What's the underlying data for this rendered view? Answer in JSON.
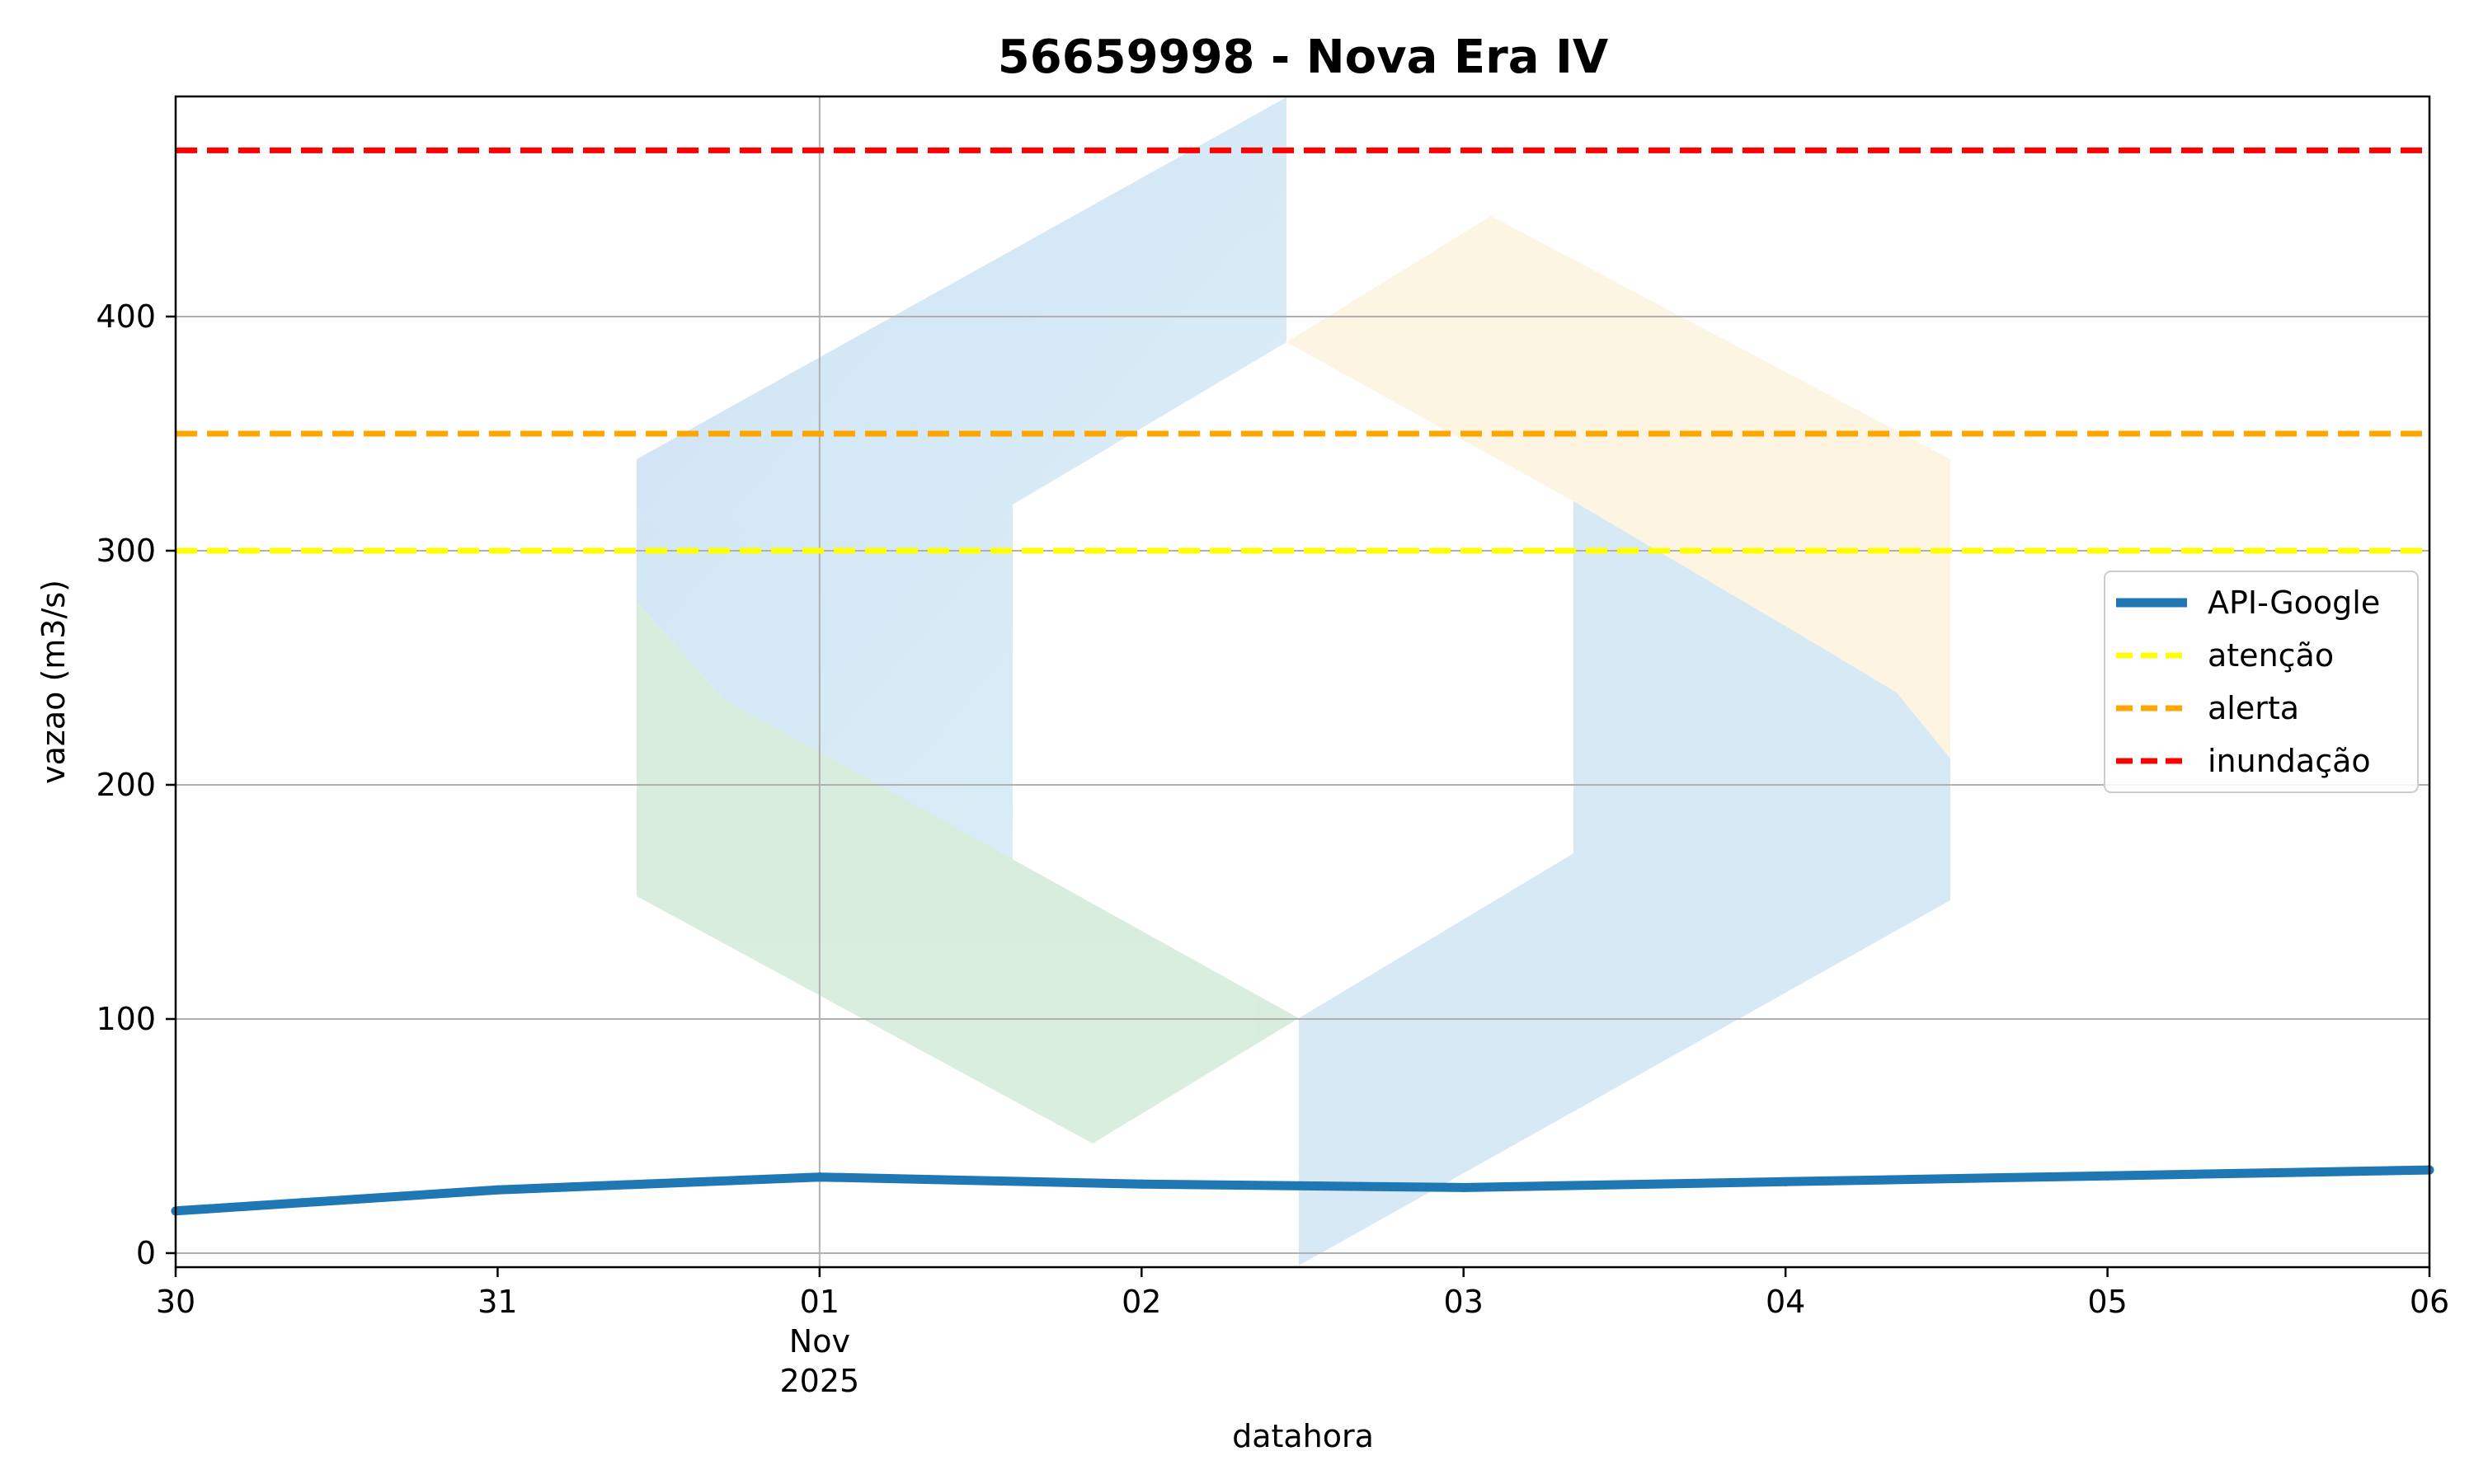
{
  "chart_data": {
    "type": "line",
    "title": "56659998 - Nova Era IV",
    "xlabel": "datahora",
    "ylabel": "vazao (m3/s)",
    "x": [
      "2025-10-30",
      "2025-10-31",
      "2025-11-01",
      "2025-11-02",
      "2025-11-03",
      "2025-11-04",
      "2025-11-05",
      "2025-11-06"
    ],
    "x_tick_labels": [
      {
        "x": "2025-10-30",
        "lines": [
          "30"
        ]
      },
      {
        "x": "2025-10-31",
        "lines": [
          "31"
        ]
      },
      {
        "x": "2025-11-01",
        "lines": [
          "01",
          "Nov",
          "2025"
        ]
      },
      {
        "x": "2025-11-02",
        "lines": [
          "02"
        ]
      },
      {
        "x": "2025-11-03",
        "lines": [
          "03"
        ]
      },
      {
        "x": "2025-11-04",
        "lines": [
          "04"
        ]
      },
      {
        "x": "2025-11-05",
        "lines": [
          "05"
        ]
      },
      {
        "x": "2025-11-06",
        "lines": [
          "06"
        ]
      }
    ],
    "xlim": [
      "2025-10-30",
      "2025-11-06"
    ],
    "ylim": [
      -6,
      494
    ],
    "y_ticks": [
      0,
      100,
      200,
      300,
      400
    ],
    "series": [
      {
        "name": "API-Google",
        "color": "#1f77b4",
        "style": "solid",
        "x": [
          "2025-10-30",
          "2025-10-31",
          "2025-11-01",
          "2025-11-02",
          "2025-11-03",
          "2025-11-04",
          "2025-11-05",
          "2025-11-06"
        ],
        "values": [
          18,
          27,
          32.5,
          29.5,
          28,
          30.5,
          33,
          35.5
        ]
      }
    ],
    "thresholds": [
      {
        "name": "atenção",
        "value": 300,
        "color": "#ffff00",
        "style": "dashed"
      },
      {
        "name": "alerta",
        "value": 350,
        "color": "#ffa500",
        "style": "dashed"
      },
      {
        "name": "inundação",
        "value": 471,
        "color": "#ff0000",
        "style": "dashed"
      }
    ],
    "grid": true,
    "legend_position": "center-right",
    "watermark": "hexagon-logo-watermark"
  }
}
